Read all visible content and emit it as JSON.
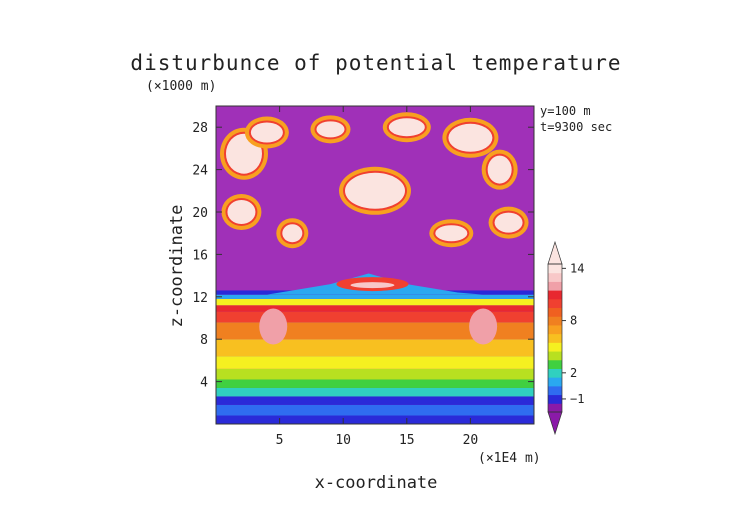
{
  "chart_data": {
    "type": "heatmap",
    "title": "disturbunce of potential temperature",
    "xlabel": "x-coordinate",
    "ylabel": "z-coordinate",
    "x_unit": "(×1E4 m)",
    "y_unit": "(×1000 m)",
    "annotations": [
      "y=100 m",
      "t=9300 sec"
    ],
    "x_ticks": [
      "5",
      "10",
      "15",
      "20"
    ],
    "x_tick_values": [
      5,
      10,
      15,
      20
    ],
    "y_ticks": [
      "4",
      "8",
      "12",
      "16",
      "20",
      "24",
      "28"
    ],
    "y_tick_values": [
      4,
      8,
      12,
      16,
      20,
      24,
      28
    ],
    "xlim": [
      0,
      25
    ],
    "ylim": [
      0,
      30
    ],
    "colorbar": {
      "tick_labels": [
        "14",
        "8",
        "2",
        "−1"
      ],
      "tick_values": [
        14,
        8,
        2,
        -1
      ],
      "levels_bottom_to_top": [
        {
          "color": "#8a1aa8"
        },
        {
          "color": "#2a2ad8"
        },
        {
          "color": "#2f6cf0"
        },
        {
          "color": "#2aa8f0"
        },
        {
          "color": "#30d0c0"
        },
        {
          "color": "#40d040"
        },
        {
          "color": "#b8e020"
        },
        {
          "color": "#f5f020"
        },
        {
          "color": "#f8c020"
        },
        {
          "color": "#f8a020"
        },
        {
          "color": "#f08020"
        },
        {
          "color": "#f06020"
        },
        {
          "color": "#f04030"
        },
        {
          "color": "#e82830"
        },
        {
          "color": "#f0a0a8"
        },
        {
          "color": "#f8c8c8"
        },
        {
          "color": "#fbe4e0"
        }
      ]
    },
    "background_color": "#a030b8"
  }
}
